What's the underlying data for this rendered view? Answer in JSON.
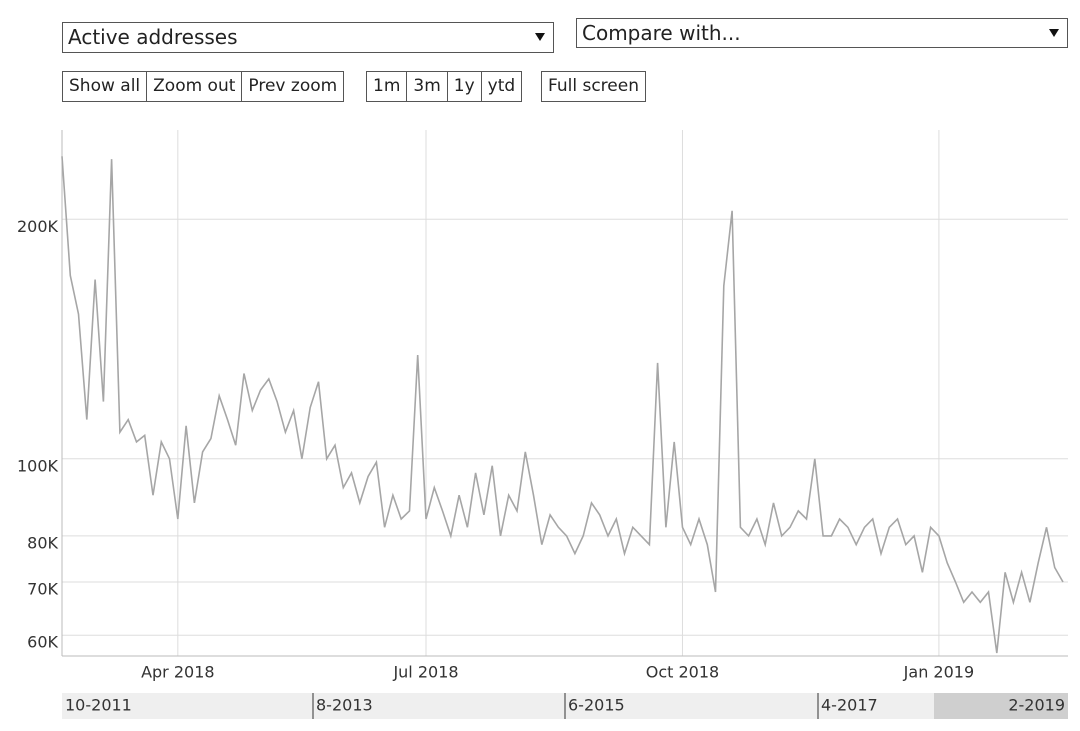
{
  "controls": {
    "metric": "Active addresses",
    "compare": "Compare with...",
    "zoom_buttons": [
      "Show all",
      "Zoom out",
      "Prev zoom"
    ],
    "range_buttons": [
      "1m",
      "3m",
      "1y",
      "ytd"
    ],
    "fullscreen": "Full screen"
  },
  "chart_data": {
    "type": "line",
    "categories": [
      null,
      null,
      null,
      null,
      null,
      null,
      null,
      null,
      null,
      null,
      null,
      null,
      null,
      null,
      "Apr 2018",
      null,
      null,
      null,
      null,
      null,
      null,
      null,
      null,
      null,
      null,
      null,
      null,
      null,
      null,
      null,
      null,
      null,
      null,
      null,
      null,
      null,
      null,
      null,
      null,
      null,
      null,
      null,
      null,
      null,
      "Jul 2018",
      null,
      null,
      null,
      null,
      null,
      null,
      null,
      null,
      null,
      null,
      null,
      null,
      null,
      null,
      null,
      null,
      null,
      null,
      null,
      null,
      null,
      null,
      null,
      null,
      null,
      null,
      null,
      null,
      null,
      null,
      "Oct 2018",
      null,
      null,
      null,
      null,
      null,
      null,
      null,
      null,
      null,
      null,
      null,
      null,
      null,
      null,
      null,
      null,
      null,
      null,
      null,
      null,
      null,
      null,
      null,
      null,
      null,
      null,
      null,
      null,
      null,
      null,
      "Jan 2019",
      null,
      null,
      null,
      null,
      null,
      null,
      null,
      null,
      null,
      null,
      null,
      null,
      null,
      null,
      null
    ],
    "values": [
      240000,
      170000,
      152000,
      112000,
      168000,
      118000,
      238000,
      108000,
      112000,
      105000,
      107000,
      90000,
      105000,
      100000,
      84000,
      110000,
      88000,
      102000,
      106000,
      120000,
      112000,
      104000,
      128000,
      115000,
      122000,
      126000,
      118000,
      108000,
      115000,
      100000,
      116000,
      125000,
      100000,
      104000,
      92000,
      96000,
      88000,
      95000,
      99000,
      82000,
      90000,
      84000,
      86000,
      135000,
      84000,
      92000,
      86000,
      80000,
      90000,
      82000,
      96000,
      85000,
      98000,
      80000,
      90000,
      86000,
      102000,
      90000,
      78000,
      85000,
      82000,
      80000,
      76000,
      80000,
      88000,
      85000,
      80000,
      84000,
      76000,
      82000,
      80000,
      78000,
      132000,
      82000,
      105000,
      82000,
      78000,
      84000,
      78000,
      68000,
      165000,
      205000,
      82000,
      80000,
      84000,
      78000,
      88000,
      80000,
      82000,
      86000,
      84000,
      100000,
      80000,
      80000,
      84000,
      82000,
      78000,
      82000,
      84000,
      76000,
      82000,
      84000,
      78000,
      80000,
      72000,
      82000,
      80000,
      74000,
      70000,
      66000,
      68000,
      66000,
      68000,
      57000,
      72000,
      66000,
      72000,
      66000,
      74000,
      82000,
      73000,
      70000
    ],
    "color": "#a6a6a6",
    "ylim": [
      56500,
      259000
    ],
    "yticks": [
      {
        "value": 60000,
        "label": "60K"
      },
      {
        "value": 70000,
        "label": "70K"
      },
      {
        "value": 80000,
        "label": "80K"
      },
      {
        "value": 100000,
        "label": "100K"
      },
      {
        "value": 200000,
        "label": "200K"
      }
    ],
    "log_scale": true,
    "grid": true
  },
  "navigator": {
    "labels": [
      "10-2011",
      "8-2013",
      "6-2015",
      "4-2017",
      "2-2019"
    ]
  }
}
